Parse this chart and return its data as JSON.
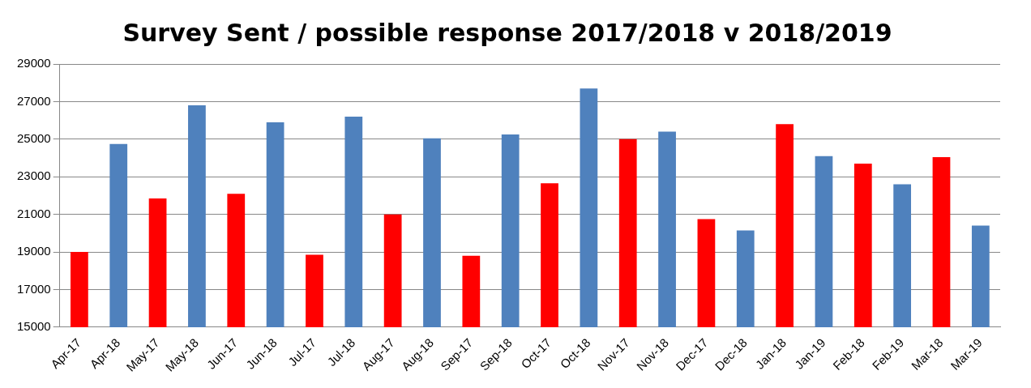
{
  "chart_data": {
    "type": "bar",
    "title": "Survey Sent / possible response 2017/2018 v 2018/2019",
    "categories": [
      "Apr-17",
      "Apr-18",
      "May-17",
      "May-18",
      "Jun-17",
      "Jun-18",
      "Jul-17",
      "Jul-18",
      "Aug-17",
      "Aug-18",
      "Sep-17",
      "Sep-18",
      "Oct-17",
      "Oct-18",
      "Nov-17",
      "Nov-18",
      "Dec-17",
      "Dec-18",
      "Jan-18",
      "Jan-19",
      "Feb-18",
      "Feb-19",
      "Mar-18",
      "Mar-19"
    ],
    "values": [
      19000,
      24750,
      21850,
      26800,
      22100,
      25900,
      18850,
      26200,
      21000,
      25050,
      18800,
      25250,
      22650,
      27700,
      25000,
      25400,
      20750,
      20150,
      25800,
      24100,
      23700,
      22600,
      24050,
      20400
    ],
    "colors": [
      "#ff0000",
      "#4f81bd",
      "#ff0000",
      "#4f81bd",
      "#ff0000",
      "#4f81bd",
      "#ff0000",
      "#4f81bd",
      "#ff0000",
      "#4f81bd",
      "#ff0000",
      "#4f81bd",
      "#ff0000",
      "#4f81bd",
      "#ff0000",
      "#4f81bd",
      "#ff0000",
      "#4f81bd",
      "#ff0000",
      "#4f81bd",
      "#ff0000",
      "#4f81bd",
      "#ff0000",
      "#4f81bd"
    ],
    "ylim": [
      15000,
      29000
    ],
    "yticks": [
      15000,
      17000,
      19000,
      21000,
      23000,
      25000,
      27000,
      29000
    ],
    "grid": "y"
  }
}
